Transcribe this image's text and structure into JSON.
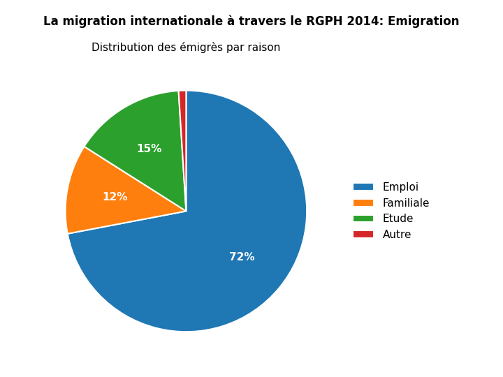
{
  "chart_data": {
    "type": "pie",
    "title": "La migration internationale à travers le RGPH 2014: Emigration",
    "subtitle": "Distribution des émigrès par raison",
    "categories": [
      "Emploi",
      "Familiale",
      "Etude",
      "Autre"
    ],
    "values": [
      72,
      12,
      15,
      1
    ],
    "value_labels": [
      "72%",
      "12%",
      "15%",
      null
    ],
    "legend": "center left"
  }
}
